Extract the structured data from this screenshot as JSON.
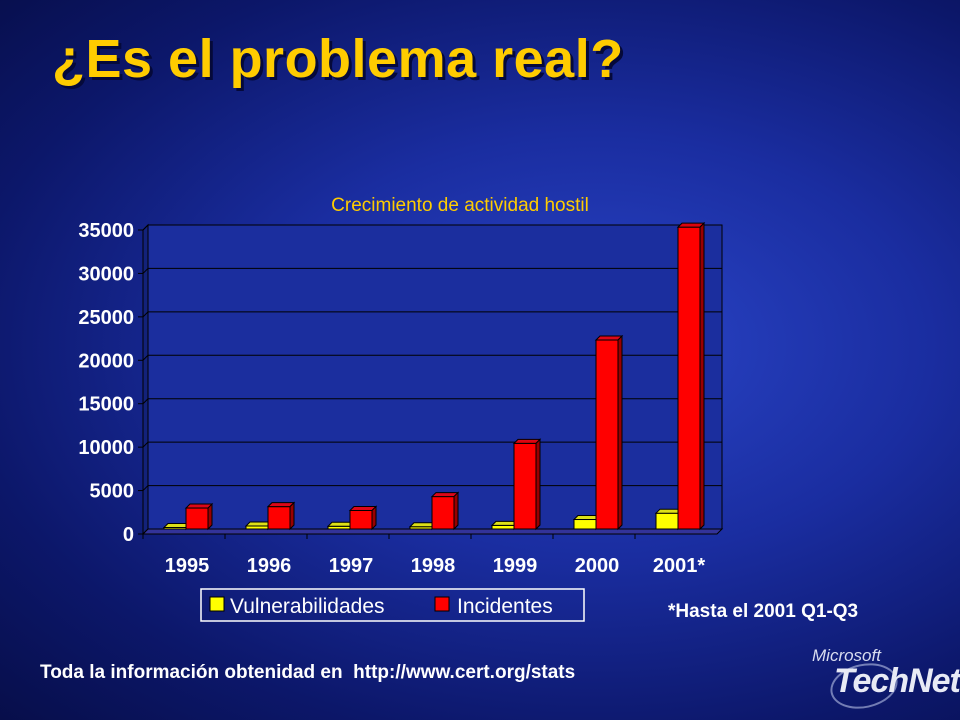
{
  "slide": {
    "title": "¿Es el problema real?",
    "footnote": "*Hasta el 2001 Q1-Q3",
    "footer_text": "Toda la información obtenidad en  http://www.cert.org/stats",
    "logo": {
      "line1": "Microsoft",
      "line2": "TechNet"
    }
  },
  "colors": {
    "background": "#1a2da0",
    "title": "#ffcc00",
    "vulnerabilidades": "#ffff00",
    "incidentes": "#ff0000",
    "plot_area": "#1b2e9e"
  },
  "chart_data": {
    "type": "bar",
    "title": "Crecimiento de actividad hostil",
    "xlabel": "",
    "ylabel": "",
    "categories": [
      "1995",
      "1996",
      "1997",
      "1998",
      "1999",
      "2000",
      "2001*"
    ],
    "series": [
      {
        "name": "Vulnerabilidades",
        "values": [
          171,
          345,
          311,
          262,
          417,
          1090,
          1820
        ]
      },
      {
        "name": "Incidentes",
        "values": [
          2412,
          2573,
          2134,
          3734,
          9859,
          21756,
          34754
        ]
      }
    ],
    "ylim": [
      0,
      35000
    ],
    "yticks": [
      "0",
      "5000",
      "10000",
      "15000",
      "20000",
      "25000",
      "30000",
      "35000"
    ],
    "grid": true,
    "legend": "bottom"
  }
}
